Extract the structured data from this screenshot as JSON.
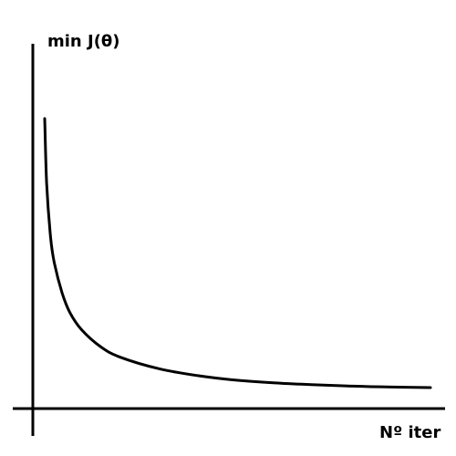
{
  "chart_data": {
    "type": "line",
    "title": "",
    "xlabel": "Nº iter",
    "ylabel": "min J(θ)",
    "grid": false,
    "ticks": false,
    "series": [
      {
        "x": [
          0.5,
          1,
          2,
          3,
          5,
          7,
          10,
          15,
          20,
          30,
          40,
          50,
          60,
          70,
          80,
          90,
          100
        ],
        "y": [
          12,
          9.2,
          6.85,
          5.7,
          4.4,
          3.55,
          2.8,
          2.05,
          1.6,
          1.1,
          0.8,
          0.6,
          0.48,
          0.4,
          0.34,
          0.3,
          0.28
        ],
        "color": "#000000"
      }
    ]
  }
}
